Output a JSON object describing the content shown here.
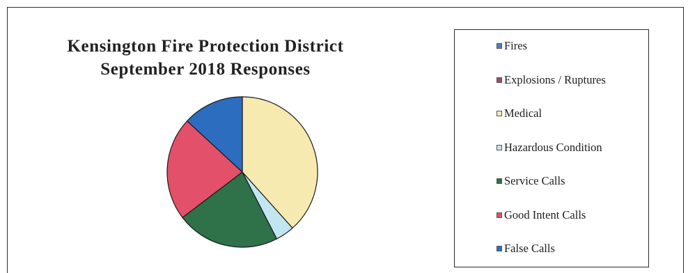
{
  "chart_data": {
    "type": "pie",
    "title_lines": [
      "Kensington Fire Protection District",
      "September 2018 Responses"
    ],
    "slices": [
      {
        "label": "Fires",
        "value": 0,
        "color": "#4a7fc1"
      },
      {
        "label": "Explosions / Ruptures",
        "value": 0,
        "color": "#a3456a"
      },
      {
        "label": "Medical",
        "value": 38,
        "color": "#f6eab0"
      },
      {
        "label": "Hazardous Condition",
        "value": 4,
        "color": "#c2e6f1"
      },
      {
        "label": "Service Calls",
        "value": 22,
        "color": "#2f7149"
      },
      {
        "label": "Good Intent Calls",
        "value": 22,
        "color": "#e3506a"
      },
      {
        "label": "False Calls",
        "value": 13,
        "color": "#2d6dc0"
      }
    ],
    "legend_position": "right",
    "start_angle_deg": 0,
    "direction": "clockwise"
  }
}
